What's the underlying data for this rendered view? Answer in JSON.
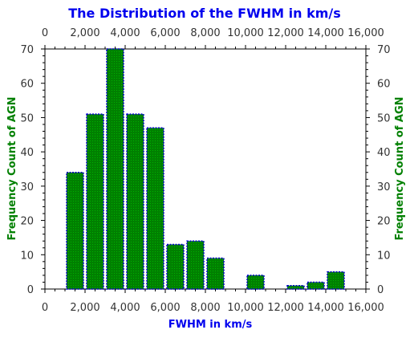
{
  "chart_data": {
    "type": "bar",
    "title": "The Distribution of the FWHM in km/s",
    "xlabel": "FWHM in km/s",
    "ylabel": "Frequency Count of AGN",
    "xlim": [
      0,
      16000
    ],
    "ylim": [
      0,
      70
    ],
    "x_ticks": [
      "0",
      "2,000",
      "4,000",
      "6,000",
      "8,000",
      "10,000",
      "12,000",
      "14,000",
      "16,000"
    ],
    "y_ticks": [
      "0",
      "10",
      "20",
      "30",
      "40",
      "50",
      "60",
      "70"
    ],
    "bin_width": 1000,
    "bins": [
      {
        "x": 1500,
        "value": 34
      },
      {
        "x": 2500,
        "value": 51
      },
      {
        "x": 3500,
        "value": 70
      },
      {
        "x": 4500,
        "value": 51
      },
      {
        "x": 5500,
        "value": 47
      },
      {
        "x": 6500,
        "value": 13
      },
      {
        "x": 7500,
        "value": 14
      },
      {
        "x": 8500,
        "value": 9
      },
      {
        "x": 9500,
        "value": 0
      },
      {
        "x": 10500,
        "value": 4
      },
      {
        "x": 11500,
        "value": 0
      },
      {
        "x": 12500,
        "value": 1
      },
      {
        "x": 13500,
        "value": 2
      },
      {
        "x": 14500,
        "value": 5
      }
    ],
    "colors": {
      "title": "#0000ee",
      "xlabel": "#0000ee",
      "ylabel": "#008000",
      "bar_fill": "#008000",
      "bar_edge": "#0000cc"
    },
    "grid": false,
    "mirrored_axes": true
  }
}
